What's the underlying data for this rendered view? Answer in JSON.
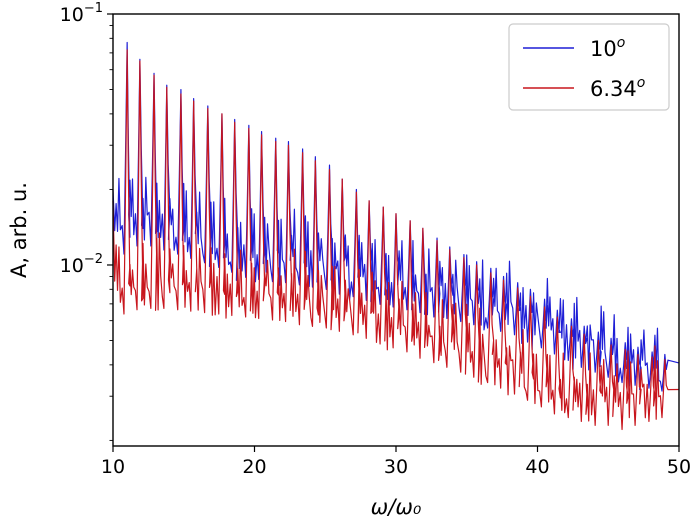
{
  "chart_data": {
    "type": "line",
    "title": "",
    "xlabel": "ω/ω₀",
    "ylabel": "A, arb. u.",
    "xlim": [
      10,
      50
    ],
    "ylim": [
      0.0019,
      0.1
    ],
    "yscale": "log",
    "grid": false,
    "legend_position": "top-right",
    "x_ticks": [
      10,
      20,
      30,
      40,
      50
    ],
    "y_ticks": [
      {
        "value": 0.01,
        "base": "10",
        "exp": "−2"
      },
      {
        "value": 0.1,
        "base": "10",
        "exp": "−1"
      }
    ],
    "series": [
      {
        "name": "10°",
        "legend_base": "10",
        "legend_sup": "o",
        "color": "#1f1fd6",
        "peak_x": [
          11.0,
          11.9,
          12.9,
          13.8,
          14.8,
          15.7,
          16.7,
          17.7,
          18.6,
          19.6,
          20.5,
          21.5,
          22.4,
          23.4,
          24.3,
          25.3,
          26.2,
          27.2,
          28.1,
          29.1,
          30.0,
          31.0,
          31.9,
          32.9,
          33.8,
          34.8,
          35.7,
          36.7,
          37.6,
          38.6,
          39.5,
          40.5,
          41.4,
          42.4,
          43.3,
          44.3,
          45.2,
          46.2,
          47.1,
          48.1,
          49.0
        ],
        "peak_y": [
          0.077,
          0.066,
          0.058,
          0.052,
          0.05,
          0.046,
          0.043,
          0.04,
          0.038,
          0.036,
          0.034,
          0.032,
          0.031,
          0.029,
          0.027,
          0.025,
          0.022,
          0.02,
          0.018,
          0.017,
          0.016,
          0.015,
          0.014,
          0.0128,
          0.0118,
          0.011,
          0.0103,
          0.0097,
          0.009,
          0.0085,
          0.008,
          0.0073,
          0.0066,
          0.0061,
          0.0057,
          0.0054,
          0.0051,
          0.0049,
          0.0047,
          0.0045,
          0.0044
        ],
        "trough_y": [
          0.013,
          0.014,
          0.014,
          0.0135,
          0.013,
          0.0125,
          0.012,
          0.0115,
          0.011,
          0.0105,
          0.0103,
          0.0101,
          0.01,
          0.0098,
          0.0096,
          0.0094,
          0.009,
          0.0088,
          0.0085,
          0.0082,
          0.008,
          0.0078,
          0.0076,
          0.0073,
          0.0072,
          0.007,
          0.0068,
          0.0066,
          0.0064,
          0.0062,
          0.0058,
          0.0055,
          0.0052,
          0.0049,
          0.0046,
          0.0044,
          0.0042,
          0.004,
          0.0039,
          0.0038,
          0.0037
        ]
      },
      {
        "name": "6.34°",
        "legend_base": "6.34",
        "legend_sup": "o",
        "color": "#c8161d",
        "peak_x": [
          11.0,
          11.9,
          12.9,
          13.8,
          14.8,
          15.7,
          16.7,
          17.7,
          18.6,
          19.6,
          20.5,
          21.5,
          22.4,
          23.4,
          24.3,
          25.3,
          26.2,
          27.2,
          28.1,
          29.1,
          30.0,
          31.0,
          31.9,
          32.9,
          33.8,
          34.8,
          35.7,
          36.7,
          37.6,
          38.6,
          39.5,
          40.5,
          41.4,
          42.4,
          43.3,
          44.3,
          45.2,
          46.2,
          47.1,
          48.1,
          49.0
        ],
        "peak_y": [
          0.072,
          0.065,
          0.057,
          0.051,
          0.048,
          0.045,
          0.042,
          0.04,
          0.037,
          0.035,
          0.033,
          0.031,
          0.03,
          0.028,
          0.026,
          0.024,
          0.022,
          0.0195,
          0.018,
          0.017,
          0.016,
          0.015,
          0.014,
          0.0125,
          0.0115,
          0.0107,
          0.01,
          0.0093,
          0.0087,
          0.0081,
          0.0075,
          0.0068,
          0.0062,
          0.0057,
          0.0053,
          0.005,
          0.0048,
          0.0046,
          0.0044,
          0.0043,
          0.0042
        ],
        "trough_y": [
          0.0075,
          0.0078,
          0.0079,
          0.0079,
          0.0078,
          0.0077,
          0.0076,
          0.0075,
          0.0074,
          0.0073,
          0.0072,
          0.0071,
          0.007,
          0.0068,
          0.0067,
          0.0066,
          0.0064,
          0.0062,
          0.006,
          0.0057,
          0.0055,
          0.0053,
          0.005,
          0.0048,
          0.0046,
          0.0044,
          0.0042,
          0.004,
          0.0038,
          0.0036,
          0.0034,
          0.0032,
          0.003,
          0.0029,
          0.0028,
          0.0027,
          0.0027,
          0.0026,
          0.0027,
          0.0028,
          0.0029
        ]
      }
    ]
  }
}
